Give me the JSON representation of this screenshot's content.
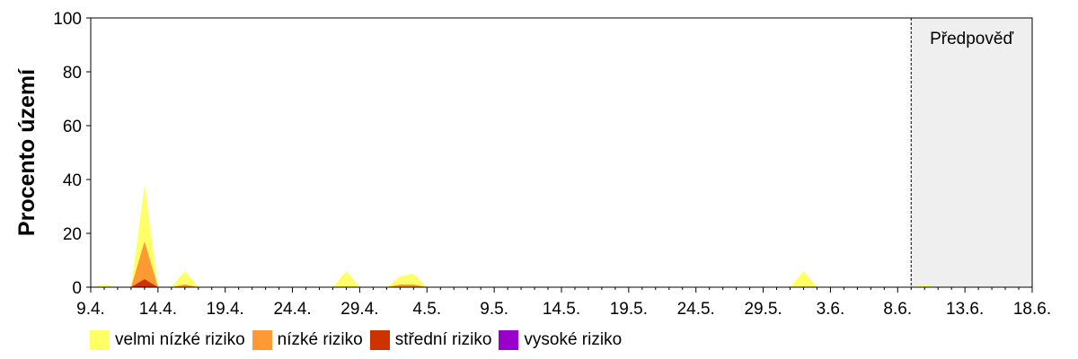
{
  "chart_data": {
    "type": "area",
    "ylabel": "Procento území",
    "ylim": [
      0,
      100
    ],
    "yticks": [
      "0",
      "20",
      "40",
      "60",
      "80",
      "100"
    ],
    "xticks": [
      "9.4.",
      "14.4.",
      "19.4.",
      "24.4.",
      "29.4.",
      "4.5.",
      "9.5.",
      "14.5.",
      "19.5.",
      "24.5.",
      "29.5.",
      "3.6.",
      "8.6.",
      "13.6.",
      "18.6."
    ],
    "xlim": [
      0,
      70
    ],
    "forecast": {
      "label": "Předpověď",
      "start": 61
    },
    "series": [
      {
        "name": "velmi nízké riziko",
        "color": "#ffff66",
        "x": [
          0,
          1,
          2,
          3,
          4,
          5,
          6,
          7,
          8,
          9,
          10,
          11,
          17,
          18,
          19,
          20,
          21,
          22,
          23,
          24,
          25,
          26,
          51,
          52,
          53,
          54,
          61,
          62,
          63
        ],
        "y": [
          0,
          1,
          0,
          0,
          38,
          0,
          0,
          6,
          0,
          0,
          0,
          0,
          0,
          0,
          6,
          0,
          0,
          0,
          4,
          5,
          0,
          0,
          0,
          0,
          6,
          0,
          0,
          1,
          0
        ]
      },
      {
        "name": "nízké riziko",
        "color": "#ff9933",
        "x": [
          0,
          3,
          4,
          5,
          6,
          7,
          8,
          22,
          23,
          24,
          25
        ],
        "y": [
          0,
          0,
          17,
          0,
          0,
          1,
          0,
          0,
          1,
          1,
          0
        ]
      },
      {
        "name": "střední riziko",
        "color": "#cc3300",
        "x": [
          0,
          3,
          4,
          5,
          6
        ],
        "y": [
          0,
          0,
          3,
          0,
          0
        ]
      },
      {
        "name": "vysoké riziko",
        "color": "#9900cc",
        "x": [
          0,
          70
        ],
        "y": [
          0,
          0
        ]
      }
    ]
  }
}
